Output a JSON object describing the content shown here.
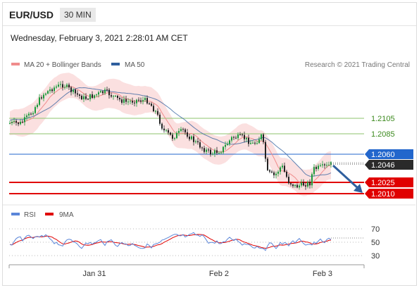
{
  "header": {
    "pair": "EUR/USD",
    "timeframe": "30 MIN"
  },
  "date_text": "Wednesday, February 3, 2021 2:28:01 AM CET",
  "legend": {
    "bollinger": "MA 20 + Bollinger Bands",
    "ma50": "MA 50",
    "credit": "Research © 2021 Trading Central",
    "rsi": "RSI",
    "ma9": "9MA"
  },
  "colors": {
    "bollinger": "#f08c8c",
    "ma50": "#2f5f9e",
    "resistance": "#8cc36e",
    "support": "#e00000",
    "current": "#2266cc",
    "rsi": "#5b86d9",
    "ma9": "#e00000"
  },
  "levels": {
    "r2": "1.2105",
    "r1": "1.2085",
    "pivot": "1.2060",
    "current": "1.2046",
    "s1": "1.2025",
    "s2": "1.2010"
  },
  "rsi_axis": [
    "70",
    "50",
    "30"
  ],
  "x_axis": [
    "Jan 31",
    "Feb 2",
    "Feb 3"
  ],
  "chart_data": {
    "type": "candlestick",
    "price_levels": [
      1.2105,
      1.2085,
      1.206,
      1.2046,
      1.2025,
      1.201
    ],
    "rsi_levels": [
      70,
      50,
      30
    ],
    "x_ticks": [
      "Jan 31",
      "Feb 2",
      "Feb 3"
    ]
  }
}
